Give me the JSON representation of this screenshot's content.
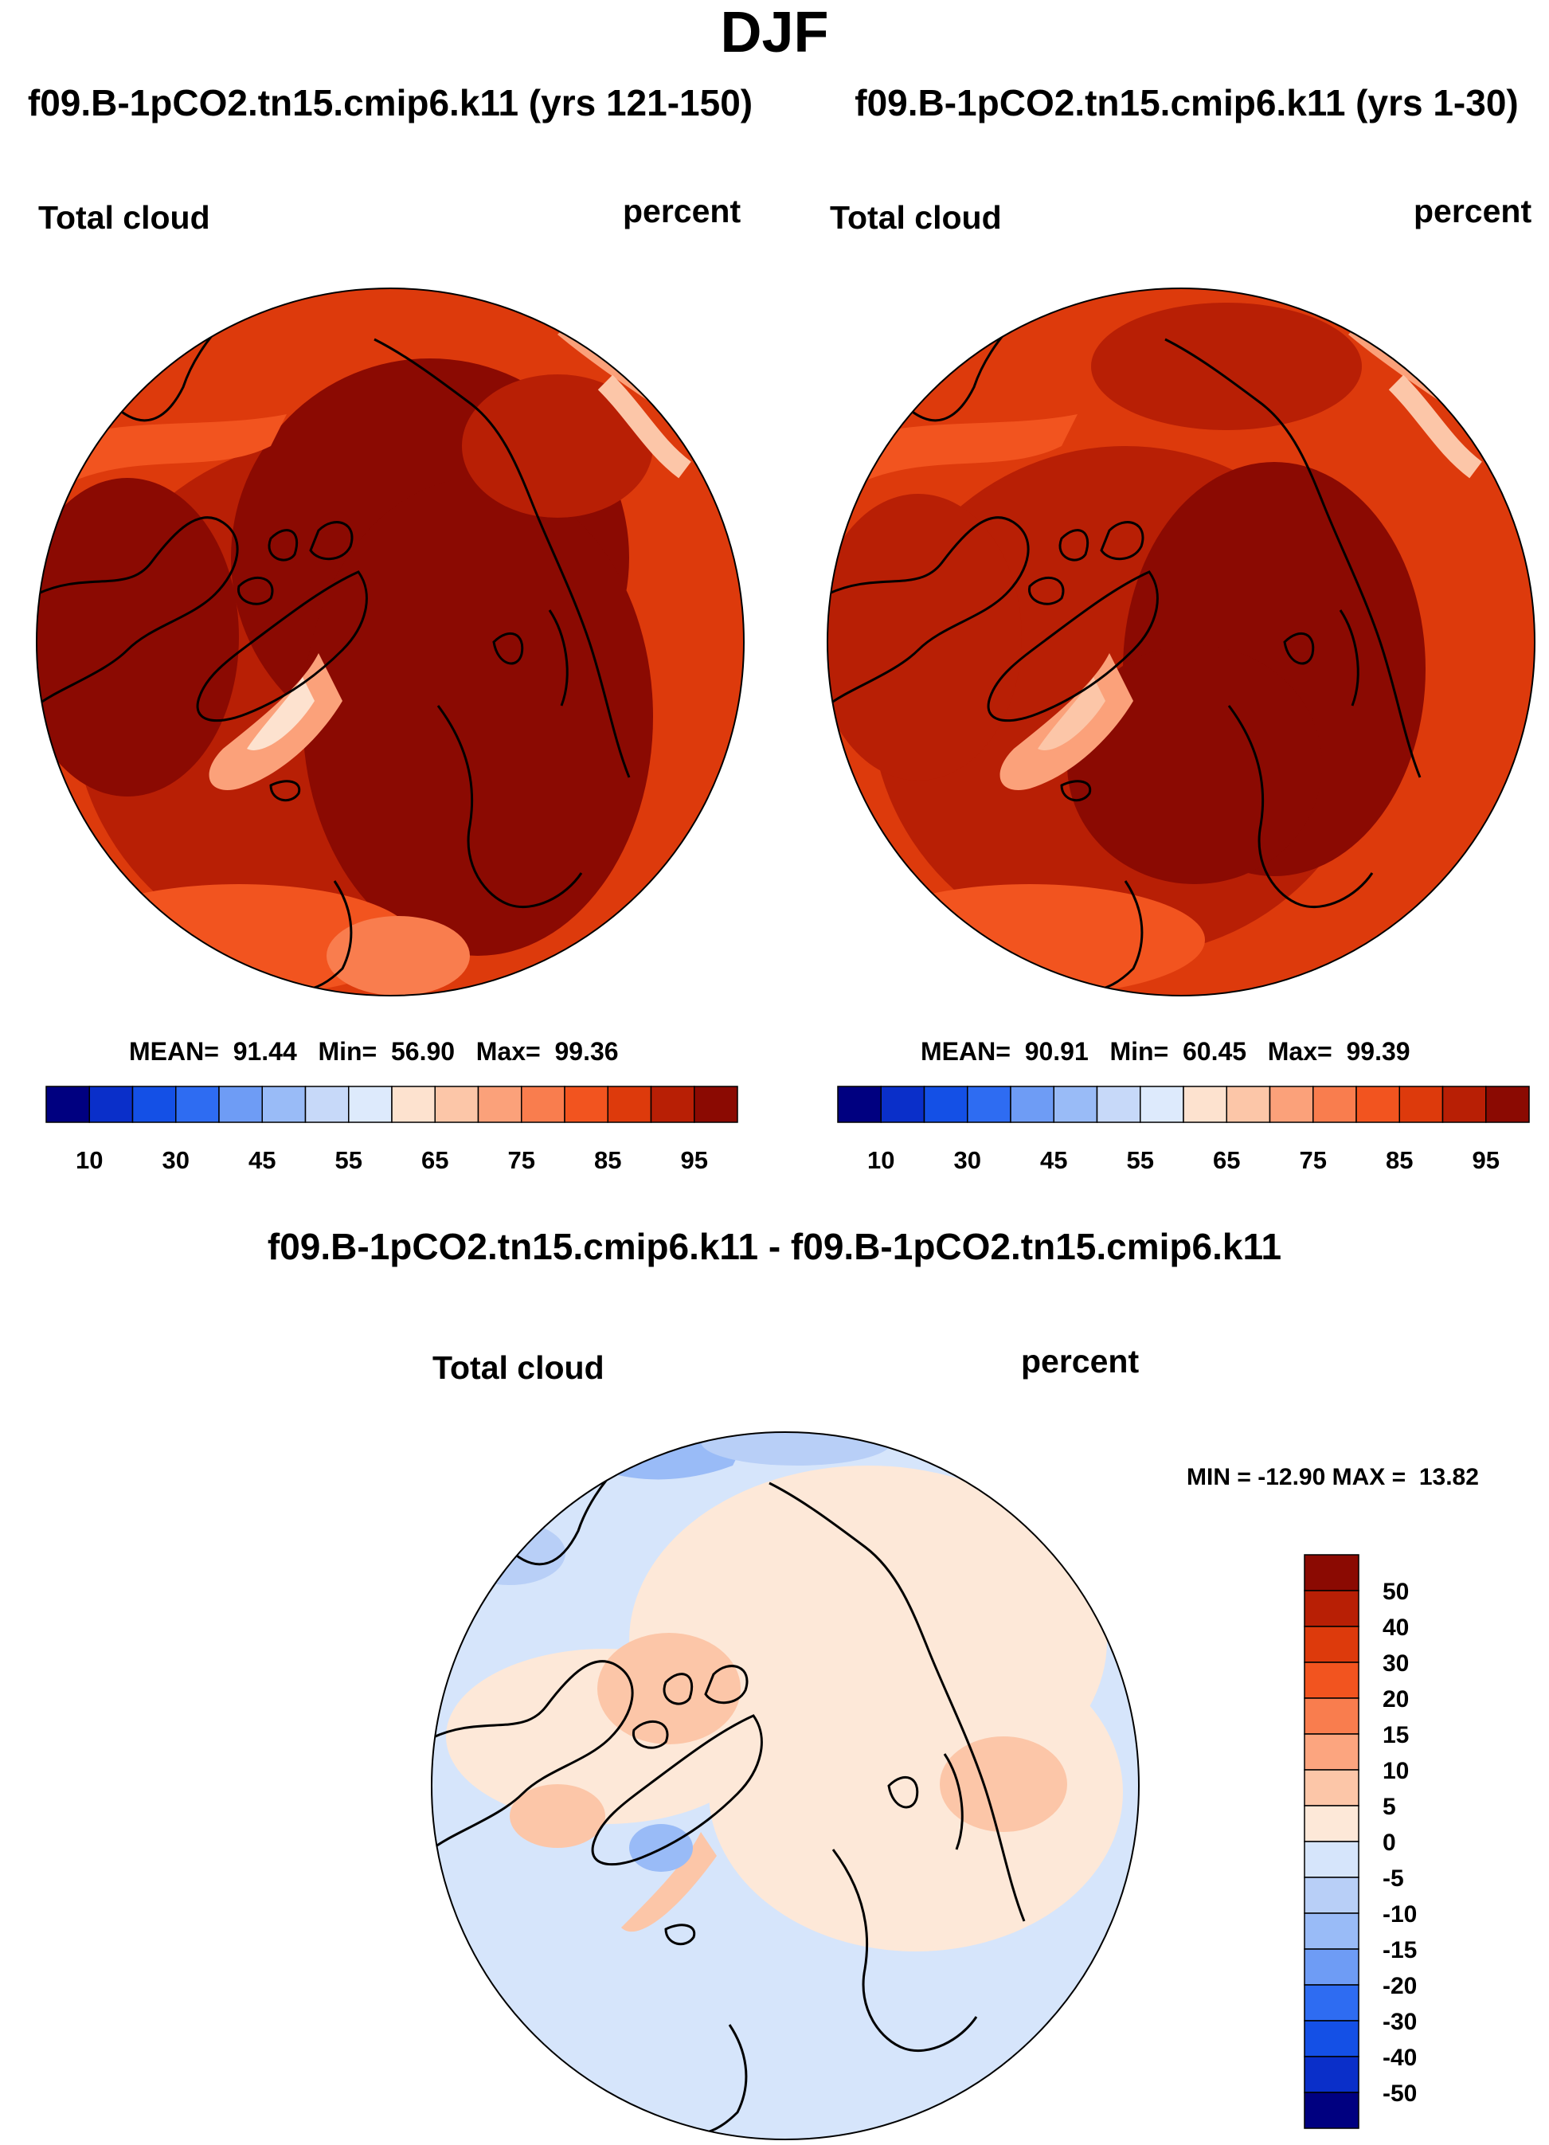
{
  "main_title": "DJF",
  "panels": [
    {
      "title": "f09.B-1pCO2.tn15.cmip6.k11 (yrs 121-150)",
      "variable": "Total cloud",
      "units": "percent",
      "stats": {
        "mean_label": "MEAN=",
        "mean": "91.44",
        "min_label": "Min=",
        "min": "56.90",
        "max_label": "Max=",
        "max": "99.36"
      }
    },
    {
      "title": "f09.B-1pCO2.tn15.cmip6.k11 (yrs 1-30)",
      "variable": "Total cloud",
      "units": "percent",
      "stats": {
        "mean_label": "MEAN=",
        "mean": "90.91",
        "min_label": "Min=",
        "min": "60.45",
        "max_label": "Max=",
        "max": "99.39"
      }
    }
  ],
  "abs_colorbar": {
    "colors": [
      "#000080",
      "#0a2fc9",
      "#1450e6",
      "#2e6cf2",
      "#6e9cf5",
      "#99bbf7",
      "#c7d9f9",
      "#ddeafc",
      "#fde2cf",
      "#fcc6a8",
      "#fba17a",
      "#f97d4e",
      "#f2541f",
      "#dd3a0c",
      "#b81f05",
      "#8b0a02"
    ],
    "tick_labels": [
      "10",
      "30",
      "45",
      "55",
      "65",
      "75",
      "85",
      "95"
    ]
  },
  "diff_panel": {
    "title": "f09.B-1pCO2.tn15.cmip6.k11 - f09.B-1pCO2.tn15.cmip6.k11",
    "variable": "Total cloud",
    "units": "percent",
    "min_label": "MIN =",
    "min": "-12.90",
    "max_label": "MAX =",
    "max": "13.82"
  },
  "diff_colorbar": {
    "colors_top_to_bottom": [
      "#8b0a02",
      "#b81f05",
      "#dd3a0c",
      "#f2541f",
      "#f97d4e",
      "#fca57f",
      "#fcc6a8",
      "#fde8d8",
      "#d6e5fb",
      "#b8cff7",
      "#99bbf7",
      "#6e9cf5",
      "#2e6cf2",
      "#1450e6",
      "#0a2fc9",
      "#000080"
    ],
    "tick_labels_top_to_bottom": [
      "50",
      "40",
      "30",
      "20",
      "15",
      "10",
      "5",
      "0",
      "-5",
      "-10",
      "-15",
      "-20",
      "-30",
      "-40",
      "-50"
    ]
  }
}
